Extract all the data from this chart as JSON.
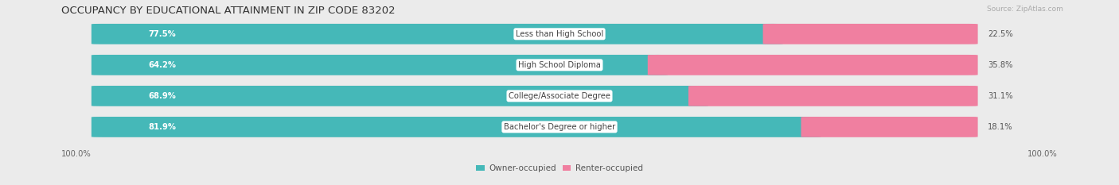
{
  "title": "OCCUPANCY BY EDUCATIONAL ATTAINMENT IN ZIP CODE 83202",
  "source": "Source: ZipAtlas.com",
  "categories": [
    "Less than High School",
    "High School Diploma",
    "College/Associate Degree",
    "Bachelor's Degree or higher"
  ],
  "owner_values": [
    77.5,
    64.2,
    68.9,
    81.9
  ],
  "renter_values": [
    22.5,
    35.8,
    31.1,
    18.1
  ],
  "owner_color": "#45b8b8",
  "renter_color": "#f07fa0",
  "bg_color": "#ebebeb",
  "row_bg_color": "#f9f9f9",
  "bar_track_color": "#e2e2e2",
  "title_fontsize": 9.5,
  "label_fontsize": 7.2,
  "pct_fontsize": 7.2,
  "legend_fontsize": 7.5,
  "source_fontsize": 6.5
}
